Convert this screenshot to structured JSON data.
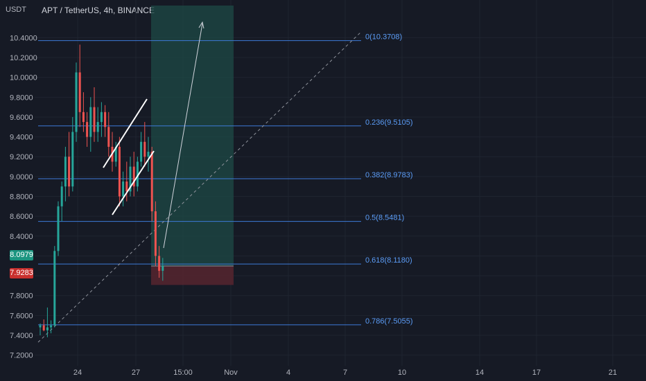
{
  "header": {
    "unit": "USDT",
    "symbol": "APT / TetherUS, 4h, BINANCE"
  },
  "colors": {
    "background": "#161a25",
    "grid": "#1f2430",
    "up": "#26a69a",
    "down": "#ef5350",
    "fib": "#3d7bd9",
    "fib_label": "#5b9cf6",
    "target_zone": "#1d4a45",
    "stop_zone": "#5a2530",
    "current_badge": "#1c9580",
    "stop_badge": "#c8302e"
  },
  "badges": {
    "current_price": "8.0979",
    "stop_price": "7.9283"
  },
  "chart_data": {
    "type": "candlestick",
    "title": "APT / TetherUS, 4h, BINANCE",
    "ylabel": "USDT",
    "ylim": [
      7.1,
      10.6
    ],
    "y_ticks": [
      "7.2000",
      "7.4000",
      "7.6000",
      "7.8000",
      "8.0000",
      "8.2000",
      "8.4000",
      "8.6000",
      "8.8000",
      "9.0000",
      "9.2000",
      "9.4000",
      "9.6000",
      "9.8000",
      "10.0000",
      "10.2000",
      "10.4000"
    ],
    "x_ticks": [
      "24",
      "27",
      "15:00",
      "Nov",
      "4",
      "7",
      "10",
      "14",
      "17",
      "21"
    ],
    "candles": [
      {
        "o": 7.48,
        "h": 7.52,
        "l": 7.4,
        "c": 7.5
      },
      {
        "o": 7.5,
        "h": 7.56,
        "l": 7.44,
        "c": 7.45
      },
      {
        "o": 7.45,
        "h": 7.68,
        "l": 7.38,
        "c": 7.48
      },
      {
        "o": 7.48,
        "h": 7.55,
        "l": 7.42,
        "c": 7.5
      },
      {
        "o": 7.5,
        "h": 8.3,
        "l": 7.48,
        "c": 8.25
      },
      {
        "o": 8.25,
        "h": 8.75,
        "l": 8.2,
        "c": 8.7
      },
      {
        "o": 8.7,
        "h": 8.95,
        "l": 8.55,
        "c": 8.9
      },
      {
        "o": 8.9,
        "h": 9.3,
        "l": 8.75,
        "c": 9.2
      },
      {
        "o": 9.2,
        "h": 9.45,
        "l": 8.8,
        "c": 8.9
      },
      {
        "o": 8.9,
        "h": 9.6,
        "l": 8.85,
        "c": 9.45
      },
      {
        "o": 9.45,
        "h": 10.15,
        "l": 9.35,
        "c": 10.05
      },
      {
        "o": 10.05,
        "h": 10.33,
        "l": 9.5,
        "c": 9.65
      },
      {
        "o": 9.65,
        "h": 9.85,
        "l": 9.45,
        "c": 9.55
      },
      {
        "o": 9.55,
        "h": 9.65,
        "l": 9.3,
        "c": 9.4
      },
      {
        "o": 9.4,
        "h": 9.8,
        "l": 9.25,
        "c": 9.7
      },
      {
        "o": 9.7,
        "h": 9.9,
        "l": 9.35,
        "c": 9.45
      },
      {
        "o": 9.45,
        "h": 9.7,
        "l": 9.35,
        "c": 9.55
      },
      {
        "o": 9.55,
        "h": 9.75,
        "l": 9.4,
        "c": 9.65
      },
      {
        "o": 9.65,
        "h": 9.72,
        "l": 9.4,
        "c": 9.5
      },
      {
        "o": 9.5,
        "h": 9.65,
        "l": 9.2,
        "c": 9.3
      },
      {
        "o": 9.3,
        "h": 9.45,
        "l": 9.05,
        "c": 9.15
      },
      {
        "o": 9.15,
        "h": 9.35,
        "l": 9.1,
        "c": 9.3
      },
      {
        "o": 9.3,
        "h": 9.4,
        "l": 8.7,
        "c": 8.8
      },
      {
        "o": 8.8,
        "h": 9.05,
        "l": 8.7,
        "c": 8.95
      },
      {
        "o": 8.95,
        "h": 9.15,
        "l": 8.75,
        "c": 8.85
      },
      {
        "o": 8.85,
        "h": 9.2,
        "l": 8.8,
        "c": 9.1
      },
      {
        "o": 9.1,
        "h": 9.25,
        "l": 8.8,
        "c": 8.9
      },
      {
        "o": 8.9,
        "h": 9.2,
        "l": 8.85,
        "c": 9.15
      },
      {
        "o": 9.15,
        "h": 9.45,
        "l": 9.1,
        "c": 9.35
      },
      {
        "o": 9.35,
        "h": 9.55,
        "l": 9.1,
        "c": 9.2
      },
      {
        "o": 9.2,
        "h": 9.4,
        "l": 9.05,
        "c": 9.25
      },
      {
        "o": 9.25,
        "h": 9.3,
        "l": 8.55,
        "c": 8.65
      },
      {
        "o": 8.65,
        "h": 8.75,
        "l": 8.1,
        "c": 8.2
      },
      {
        "o": 8.2,
        "h": 8.3,
        "l": 7.98,
        "c": 8.05
      },
      {
        "o": 8.05,
        "h": 8.18,
        "l": 7.95,
        "c": 8.1
      }
    ],
    "fib_levels": [
      {
        "label": "0(10.3708)",
        "value": 10.3708
      },
      {
        "label": "0.236(9.5105)",
        "value": 9.5105
      },
      {
        "label": "0.382(8.9783)",
        "value": 8.9783
      },
      {
        "label": "0.5(8.5481)",
        "value": 8.5481
      },
      {
        "label": "0.618(8.1180)",
        "value": 8.118
      },
      {
        "label": "0.786(7.5055)",
        "value": 7.5055
      }
    ],
    "position": {
      "entry": 8.0979,
      "stop": 7.9283,
      "target": 10.6
    },
    "grid": true,
    "legend": "none"
  }
}
